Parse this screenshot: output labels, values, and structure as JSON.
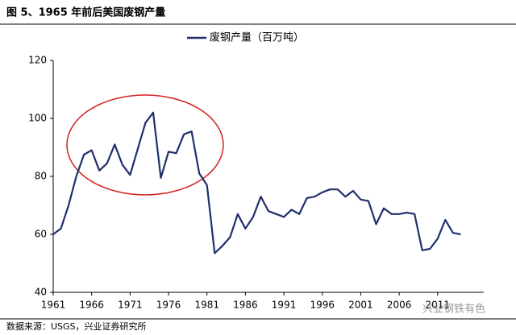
{
  "chart_data": {
    "type": "line",
    "title": "图 5、1965 年前后美国废钢产量",
    "source": "数据来源：USGS，兴业证券研究所",
    "watermark": "兴业钢铁有色",
    "x": [
      1961,
      1962,
      1963,
      1964,
      1965,
      1966,
      1967,
      1968,
      1969,
      1970,
      1971,
      1972,
      1973,
      1974,
      1975,
      1976,
      1977,
      1978,
      1979,
      1980,
      1981,
      1982,
      1983,
      1984,
      1985,
      1986,
      1987,
      1988,
      1989,
      1990,
      1991,
      1992,
      1993,
      1994,
      1995,
      1996,
      1997,
      1998,
      1999,
      2000,
      2001,
      2002,
      2003,
      2004,
      2005,
      2006,
      2007,
      2008,
      2009,
      2010,
      2011,
      2012,
      2013,
      2014
    ],
    "series": [
      {
        "name": "废钢产量（百万吨）",
        "color": "#1f2f6b",
        "values": [
          60,
          62,
          70,
          80,
          87.5,
          89,
          82,
          84.5,
          91,
          84,
          80.5,
          89.5,
          98.5,
          102,
          79.5,
          88.5,
          88,
          94.5,
          95.5,
          81,
          77,
          53.5,
          56,
          59,
          67,
          62,
          66,
          73,
          68,
          67,
          66,
          68.5,
          67,
          72.5,
          73,
          74.5,
          75.5,
          75.5,
          73,
          75,
          72,
          71.5,
          63.5,
          69,
          67,
          67,
          67.5,
          67,
          54.5,
          55,
          58.5,
          65,
          60.5,
          60
        ]
      }
    ],
    "xlim": [
      1961,
      2017
    ],
    "xticks": [
      1961,
      1966,
      1971,
      1976,
      1981,
      1986,
      1991,
      1996,
      2001,
      2006,
      2011
    ],
    "ylim": [
      40,
      120
    ],
    "yticks": [
      40,
      60,
      80,
      100,
      120
    ],
    "grid": false,
    "legend": "top"
  }
}
